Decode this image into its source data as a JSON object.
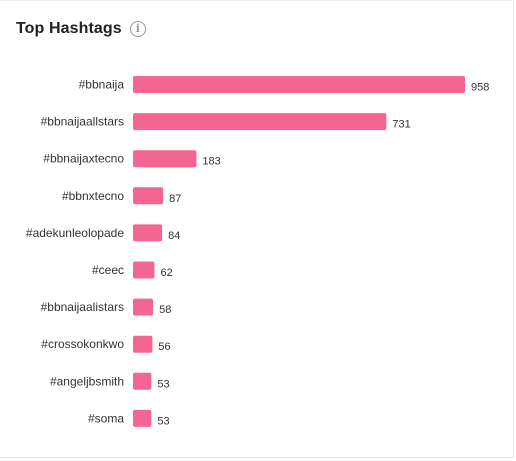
{
  "card": {
    "title": "Top Hashtags",
    "info_icon": "info-circle-icon"
  },
  "chart_data": {
    "type": "bar",
    "orientation": "horizontal",
    "categories": [
      "#bbnaija",
      "#bbnaijaallstars",
      "#bbnaijaxtecno",
      "#bbnxtecno",
      "#adekunleolopade",
      "#ceec",
      "#bbnaijaalistars",
      "#crossokonkwo",
      "#angeljbsmith",
      "#soma"
    ],
    "values": [
      958,
      731,
      183,
      87,
      84,
      62,
      58,
      56,
      53,
      53
    ],
    "data_labels": [
      "958",
      "731",
      "183",
      "87",
      "84",
      "62",
      "58",
      "56",
      "53",
      "53"
    ],
    "xlim": [
      0,
      958
    ],
    "grid": false,
    "legend": "none",
    "bar_color": "#f46692"
  }
}
